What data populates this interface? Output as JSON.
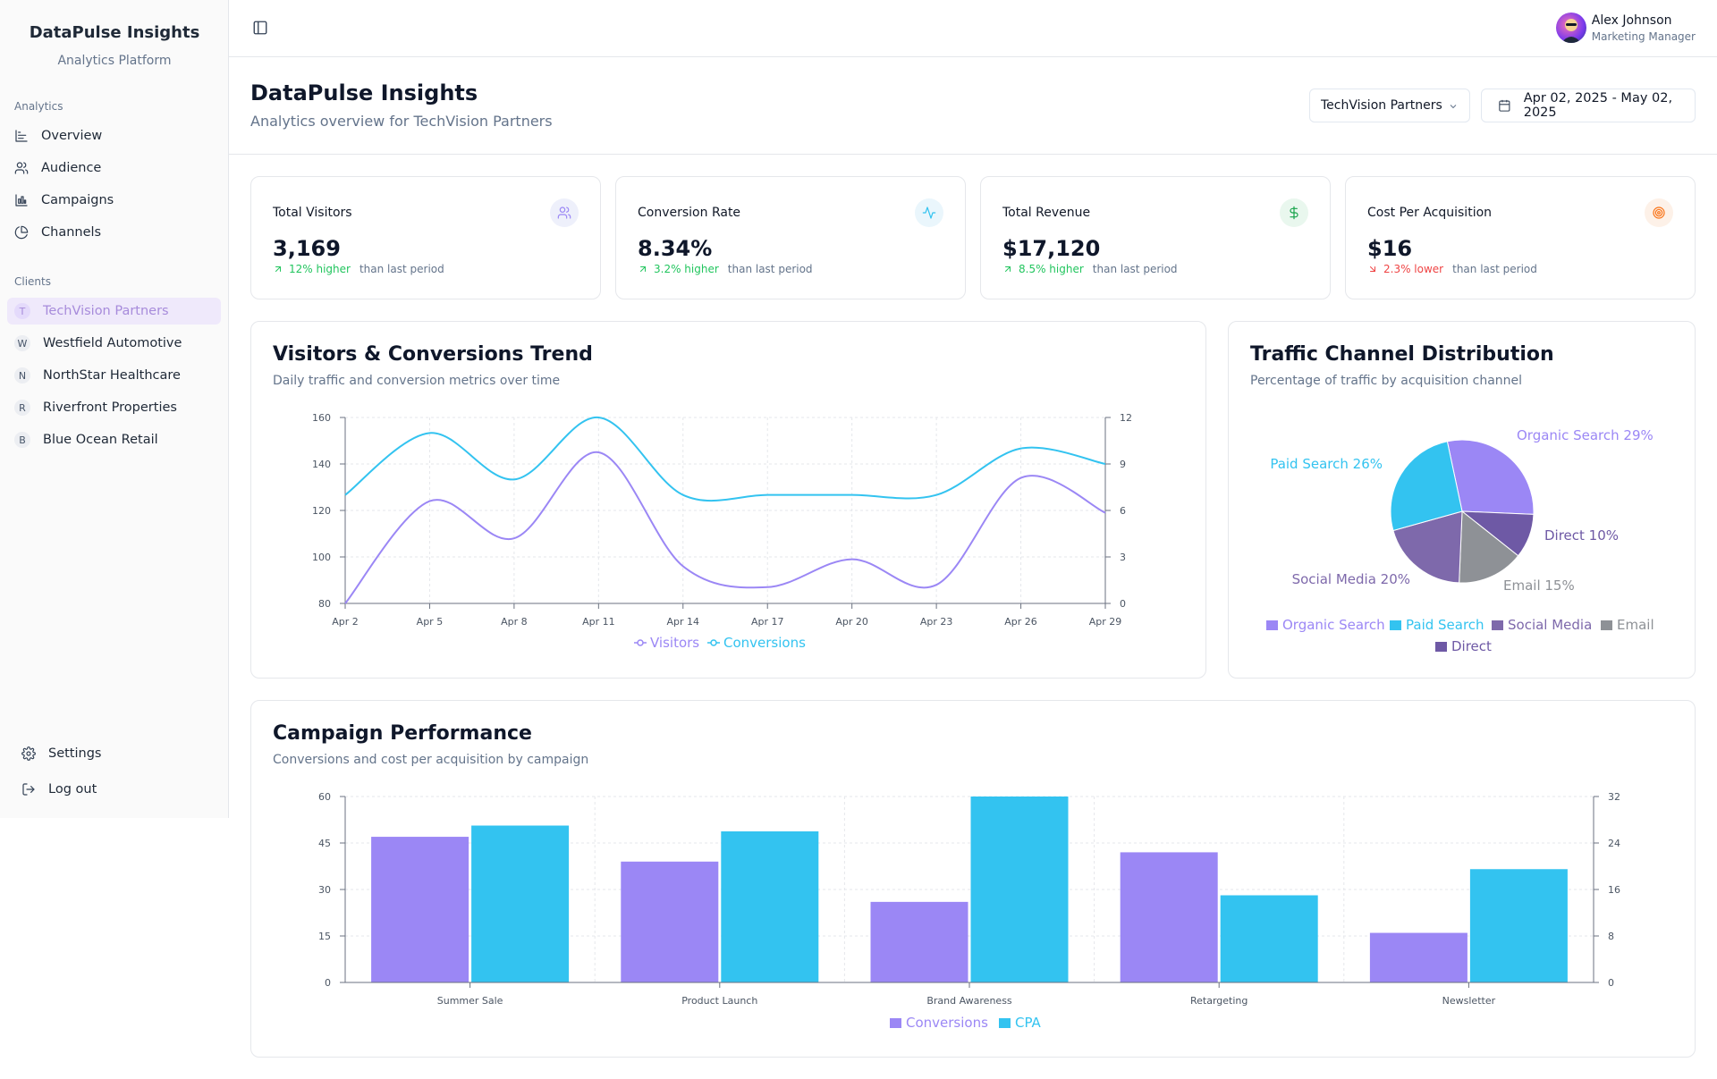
{
  "app": {
    "title": "DataPulse Insights",
    "subtitle": "Analytics Platform"
  },
  "sidebar": {
    "analytics_label": "Analytics",
    "nav": [
      {
        "label": "Overview",
        "icon": "overview-icon"
      },
      {
        "label": "Audience",
        "icon": "users-icon"
      },
      {
        "label": "Campaigns",
        "icon": "bar-chart-icon"
      },
      {
        "label": "Channels",
        "icon": "pie-chart-icon"
      }
    ],
    "clients_label": "Clients",
    "clients": [
      {
        "initial": "T",
        "label": "TechVision Partners",
        "active": true
      },
      {
        "initial": "W",
        "label": "Westfield Automotive",
        "active": false
      },
      {
        "initial": "N",
        "label": "NorthStar Healthcare",
        "active": false
      },
      {
        "initial": "R",
        "label": "Riverfront Properties",
        "active": false
      },
      {
        "initial": "B",
        "label": "Blue Ocean Retail",
        "active": false
      }
    ],
    "settings_label": "Settings",
    "logout_label": "Log out"
  },
  "user": {
    "name": "Alex Johnson",
    "role": "Marketing Manager"
  },
  "header": {
    "title": "DataPulse Insights",
    "subtitle": "Analytics overview for TechVision Partners",
    "client_select": "TechVision Partners",
    "date_range": "Apr 02, 2025 - May 02, 2025"
  },
  "kpis": [
    {
      "label": "Total Visitors",
      "value": "3,169",
      "change": "12% higher",
      "direction": "up",
      "suffix": "than last period",
      "icon": "users-icon"
    },
    {
      "label": "Conversion Rate",
      "value": "8.34%",
      "change": "3.2% higher",
      "direction": "up",
      "suffix": "than last period",
      "icon": "activity-icon"
    },
    {
      "label": "Total Revenue",
      "value": "$17,120",
      "change": "8.5% higher",
      "direction": "up",
      "suffix": "than last period",
      "icon": "dollar-icon"
    },
    {
      "label": "Cost Per Acquisition",
      "value": "$16",
      "change": "2.3% lower",
      "direction": "down",
      "suffix": "than last period",
      "icon": "target-icon"
    }
  ],
  "colors": {
    "purple": "#9b87f5",
    "cyan": "#33c3f0",
    "violet": "#7e69ab",
    "gray": "#8e9196",
    "deep": "#6e59a5",
    "up": "#22c55e",
    "down": "#ef4444"
  },
  "trend_card": {
    "title": "Visitors & Conversions Trend",
    "subtitle": "Daily traffic and conversion metrics over time"
  },
  "channel_card": {
    "title": "Traffic Channel Distribution",
    "subtitle": "Percentage of traffic by acquisition channel"
  },
  "campaign_card": {
    "title": "Campaign Performance",
    "subtitle": "Conversions and cost per acquisition by campaign"
  },
  "chart_data": [
    {
      "type": "line",
      "title": "Visitors & Conversions Trend",
      "x": [
        "Apr 2",
        "Apr 5",
        "Apr 8",
        "Apr 11",
        "Apr 14",
        "Apr 17",
        "Apr 20",
        "Apr 23",
        "Apr 26",
        "Apr 29"
      ],
      "series": [
        {
          "name": "Visitors",
          "axis": "left",
          "values": [
            80,
            124,
            108,
            145,
            96,
            87,
            99,
            88,
            134,
            119
          ]
        },
        {
          "name": "Conversions",
          "axis": "right",
          "values": [
            7,
            11,
            8,
            12,
            7,
            7,
            7,
            7,
            10,
            9
          ]
        }
      ],
      "ylim_left": [
        80,
        160
      ],
      "yticks_left": [
        80,
        100,
        120,
        140,
        160
      ],
      "ylim_right": [
        0,
        12
      ],
      "yticks_right": [
        0,
        3,
        6,
        9,
        12
      ],
      "legend": "bottom",
      "grid": true
    },
    {
      "type": "pie",
      "title": "Traffic Channel Distribution",
      "slices": [
        {
          "name": "Organic Search",
          "value": 29,
          "label": "Organic Search 29%"
        },
        {
          "name": "Direct",
          "value": 10,
          "label": "Direct 10%"
        },
        {
          "name": "Email",
          "value": 15,
          "label": "Email 15%"
        },
        {
          "name": "Social Media",
          "value": 20,
          "label": "Social Media 20%"
        },
        {
          "name": "Paid Search",
          "value": 26,
          "label": "Paid Search 26%"
        }
      ],
      "legend_order": [
        "Organic Search",
        "Paid Search",
        "Social Media",
        "Email",
        "Direct"
      ],
      "legend": "bottom"
    },
    {
      "type": "bar",
      "title": "Campaign Performance",
      "categories": [
        "Summer Sale",
        "Product Launch",
        "Brand Awareness",
        "Retargeting",
        "Newsletter"
      ],
      "series": [
        {
          "name": "Conversions",
          "axis": "left",
          "values": [
            47,
            39,
            26,
            42,
            16
          ]
        },
        {
          "name": "CPA",
          "axis": "right",
          "values": [
            27,
            26,
            32,
            15,
            19.5
          ]
        }
      ],
      "ylim_left": [
        0,
        60
      ],
      "yticks_left": [
        0,
        15,
        30,
        45,
        60
      ],
      "ylim_right": [
        0,
        32
      ],
      "yticks_right": [
        0,
        8,
        16,
        24,
        32
      ],
      "legend": "bottom",
      "grid": true
    }
  ]
}
